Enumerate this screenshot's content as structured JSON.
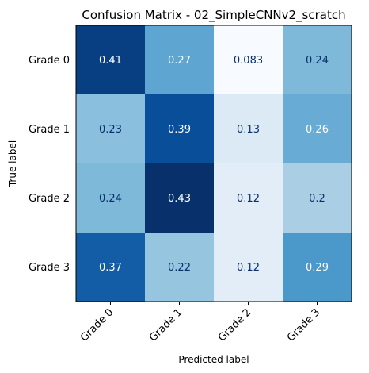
{
  "chart_data": {
    "type": "heatmap",
    "title": "Confusion Matrix - 02_SimpleCNNv2_scratch",
    "xlabel": "Predicted label",
    "ylabel": "True label",
    "x_categories": [
      "Grade 0",
      "Grade 1",
      "Grade 2",
      "Grade 3"
    ],
    "y_categories": [
      "Grade 0",
      "Grade 1",
      "Grade 2",
      "Grade 3"
    ],
    "values": [
      [
        0.41,
        0.27,
        0.083,
        0.24
      ],
      [
        0.23,
        0.39,
        0.13,
        0.26
      ],
      [
        0.24,
        0.43,
        0.12,
        0.2
      ],
      [
        0.37,
        0.22,
        0.12,
        0.29
      ]
    ],
    "cell_labels": [
      [
        "0.41",
        "0.27",
        "0.083",
        "0.24"
      ],
      [
        "0.23",
        "0.39",
        "0.13",
        "0.26"
      ],
      [
        "0.24",
        "0.43",
        "0.12",
        "0.2"
      ],
      [
        "0.37",
        "0.22",
        "0.12",
        "0.29"
      ]
    ],
    "colormap": "Blues",
    "colormap_stops": [
      "#f7fbff",
      "#deebf7",
      "#c6dbef",
      "#9ecae1",
      "#6baed6",
      "#4292c6",
      "#2171b5",
      "#08519c",
      "#08306b"
    ],
    "text_color_light": "#ffffff",
    "text_color_dark": "#08306b",
    "grid": false,
    "legend": "none"
  }
}
